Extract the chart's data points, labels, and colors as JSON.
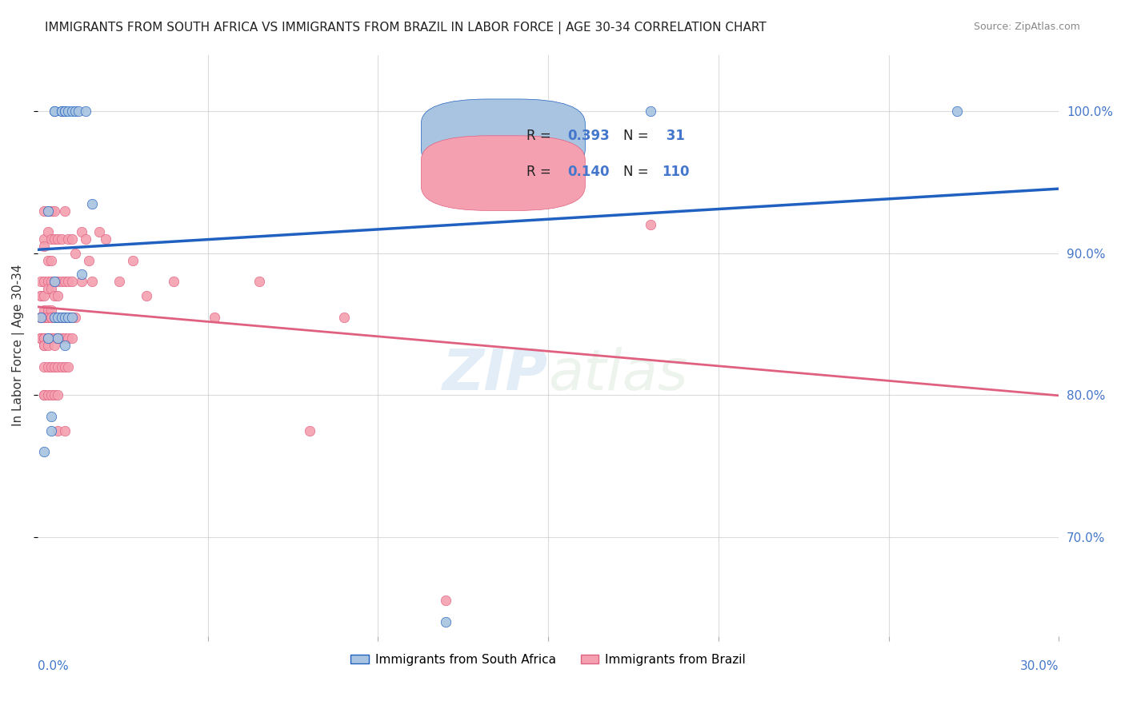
{
  "title": "IMMIGRANTS FROM SOUTH AFRICA VS IMMIGRANTS FROM BRAZIL IN LABOR FORCE | AGE 30-34 CORRELATION CHART",
  "source": "Source: ZipAtlas.com",
  "ylabel": "In Labor Force | Age 30-34",
  "right_ytick_labels": [
    "70.0%",
    "80.0%",
    "90.0%",
    "100.0%"
  ],
  "blue_color": "#a8c4e0",
  "blue_line_color": "#2060c0",
  "pink_color": "#f4a0b0",
  "pink_line_color": "#e06080",
  "watermark_zip": "ZIP",
  "watermark_atlas": "atlas",
  "blue_scatter": [
    [
      0.001,
      0.855
    ],
    [
      0.002,
      0.76
    ],
    [
      0.003,
      0.93
    ],
    [
      0.003,
      0.84
    ],
    [
      0.004,
      0.775
    ],
    [
      0.004,
      0.785
    ],
    [
      0.005,
      0.88
    ],
    [
      0.005,
      0.855
    ],
    [
      0.005,
      1.0
    ],
    [
      0.005,
      1.0
    ],
    [
      0.006,
      0.84
    ],
    [
      0.006,
      0.855
    ],
    [
      0.007,
      0.855
    ],
    [
      0.007,
      1.0
    ],
    [
      0.007,
      1.0
    ],
    [
      0.008,
      0.835
    ],
    [
      0.008,
      0.855
    ],
    [
      0.008,
      1.0
    ],
    [
      0.008,
      1.0
    ],
    [
      0.009,
      1.0
    ],
    [
      0.009,
      0.855
    ],
    [
      0.01,
      0.855
    ],
    [
      0.01,
      1.0
    ],
    [
      0.011,
      1.0
    ],
    [
      0.012,
      1.0
    ],
    [
      0.013,
      0.885
    ],
    [
      0.014,
      1.0
    ],
    [
      0.016,
      0.935
    ],
    [
      0.12,
      0.64
    ],
    [
      0.18,
      1.0
    ],
    [
      0.27,
      1.0
    ]
  ],
  "pink_scatter": [
    [
      0.001,
      0.855
    ],
    [
      0.001,
      0.87
    ],
    [
      0.001,
      0.88
    ],
    [
      0.001,
      0.855
    ],
    [
      0.001,
      0.84
    ],
    [
      0.001,
      0.855
    ],
    [
      0.001,
      0.855
    ],
    [
      0.001,
      0.87
    ],
    [
      0.001,
      0.84
    ],
    [
      0.001,
      0.855
    ],
    [
      0.001,
      0.84
    ],
    [
      0.002,
      0.93
    ],
    [
      0.002,
      0.91
    ],
    [
      0.002,
      0.905
    ],
    [
      0.002,
      0.88
    ],
    [
      0.002,
      0.87
    ],
    [
      0.002,
      0.86
    ],
    [
      0.002,
      0.855
    ],
    [
      0.002,
      0.855
    ],
    [
      0.002,
      0.84
    ],
    [
      0.002,
      0.84
    ],
    [
      0.002,
      0.84
    ],
    [
      0.002,
      0.835
    ],
    [
      0.002,
      0.835
    ],
    [
      0.002,
      0.82
    ],
    [
      0.002,
      0.8
    ],
    [
      0.002,
      0.8
    ],
    [
      0.002,
      0.855
    ],
    [
      0.003,
      0.93
    ],
    [
      0.003,
      0.915
    ],
    [
      0.003,
      0.895
    ],
    [
      0.003,
      0.88
    ],
    [
      0.003,
      0.875
    ],
    [
      0.003,
      0.86
    ],
    [
      0.003,
      0.855
    ],
    [
      0.003,
      0.855
    ],
    [
      0.003,
      0.855
    ],
    [
      0.003,
      0.84
    ],
    [
      0.003,
      0.84
    ],
    [
      0.003,
      0.835
    ],
    [
      0.003,
      0.82
    ],
    [
      0.003,
      0.8
    ],
    [
      0.004,
      0.93
    ],
    [
      0.004,
      0.91
    ],
    [
      0.004,
      0.895
    ],
    [
      0.004,
      0.88
    ],
    [
      0.004,
      0.875
    ],
    [
      0.004,
      0.86
    ],
    [
      0.004,
      0.855
    ],
    [
      0.004,
      0.855
    ],
    [
      0.004,
      0.855
    ],
    [
      0.004,
      0.84
    ],
    [
      0.004,
      0.82
    ],
    [
      0.004,
      0.8
    ],
    [
      0.005,
      0.93
    ],
    [
      0.005,
      0.91
    ],
    [
      0.005,
      0.88
    ],
    [
      0.005,
      0.87
    ],
    [
      0.005,
      0.855
    ],
    [
      0.005,
      0.84
    ],
    [
      0.005,
      0.835
    ],
    [
      0.005,
      0.82
    ],
    [
      0.005,
      0.8
    ],
    [
      0.006,
      0.91
    ],
    [
      0.006,
      0.88
    ],
    [
      0.006,
      0.87
    ],
    [
      0.006,
      0.855
    ],
    [
      0.006,
      0.84
    ],
    [
      0.006,
      0.82
    ],
    [
      0.006,
      0.8
    ],
    [
      0.006,
      0.775
    ],
    [
      0.007,
      0.91
    ],
    [
      0.007,
      0.88
    ],
    [
      0.007,
      0.855
    ],
    [
      0.007,
      0.84
    ],
    [
      0.007,
      0.82
    ],
    [
      0.008,
      0.93
    ],
    [
      0.008,
      0.88
    ],
    [
      0.008,
      0.855
    ],
    [
      0.008,
      0.84
    ],
    [
      0.008,
      0.82
    ],
    [
      0.008,
      0.775
    ],
    [
      0.009,
      0.91
    ],
    [
      0.009,
      0.88
    ],
    [
      0.009,
      0.855
    ],
    [
      0.009,
      0.84
    ],
    [
      0.009,
      0.82
    ],
    [
      0.01,
      0.91
    ],
    [
      0.01,
      0.88
    ],
    [
      0.01,
      0.855
    ],
    [
      0.01,
      0.84
    ],
    [
      0.011,
      0.9
    ],
    [
      0.011,
      0.855
    ],
    [
      0.013,
      0.915
    ],
    [
      0.013,
      0.88
    ],
    [
      0.014,
      0.91
    ],
    [
      0.015,
      0.895
    ],
    [
      0.016,
      0.88
    ],
    [
      0.018,
      0.915
    ],
    [
      0.02,
      0.91
    ],
    [
      0.024,
      0.88
    ],
    [
      0.028,
      0.895
    ],
    [
      0.032,
      0.87
    ],
    [
      0.04,
      0.88
    ],
    [
      0.052,
      0.855
    ],
    [
      0.065,
      0.88
    ],
    [
      0.08,
      0.775
    ],
    [
      0.09,
      0.855
    ],
    [
      0.12,
      0.655
    ],
    [
      0.18,
      0.92
    ]
  ],
  "xlim": [
    0.0,
    0.3
  ],
  "ylim": [
    0.63,
    1.04
  ],
  "xgrid_ticks": [
    0.05,
    0.1,
    0.15,
    0.2,
    0.25,
    0.3
  ],
  "ygrid_ticks": [
    0.7,
    0.8,
    0.9,
    1.0
  ],
  "legend_blue_r": "R = 0.393",
  "legend_blue_n": "N =  31",
  "legend_pink_r": "R = 0.140",
  "legend_pink_n": "N = 110",
  "legend_label_blue": "Immigrants from South Africa",
  "legend_label_pink": "Immigrants from Brazil"
}
